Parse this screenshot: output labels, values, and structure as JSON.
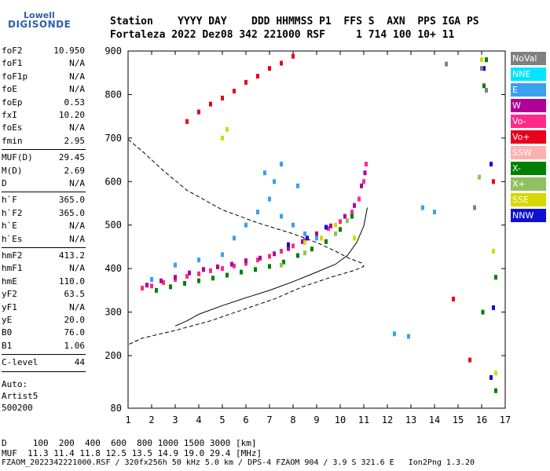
{
  "logo": {
    "top": "Lowell",
    "main": "DIGISONDE"
  },
  "header": {
    "line1": "Station    YYYY DAY    DDD HHMMSS P1  FFS S  AXN  PPS IGA PS",
    "line2": "Fortaleza 2022 Dez08 342 221000 RSF     1 714 100 10+ 11"
  },
  "params": [
    {
      "k": "foF2",
      "v": "10.950"
    },
    {
      "k": "foF1",
      "v": "N/A"
    },
    {
      "k": "foF1p",
      "v": "N/A"
    },
    {
      "k": "foE",
      "v": "N/A"
    },
    {
      "k": "foEp",
      "v": "0.53"
    },
    {
      "k": "fxI",
      "v": "10.20"
    },
    {
      "k": "foEs",
      "v": "N/A"
    },
    {
      "k": "fmin",
      "v": "2.95"
    },
    {
      "k": "MUF(D)",
      "v": "29.45"
    },
    {
      "k": "M(D)",
      "v": "2.69"
    },
    {
      "k": "D",
      "v": "N/A"
    },
    {
      "k": "h`F",
      "v": "365.0"
    },
    {
      "k": "h`F2",
      "v": "365.0"
    },
    {
      "k": "h`E",
      "v": "N/A"
    },
    {
      "k": "h`Es",
      "v": "N/A"
    },
    {
      "k": "hmF2",
      "v": "413.2"
    },
    {
      "k": "hmF1",
      "v": "N/A"
    },
    {
      "k": "hmE",
      "v": "110.0"
    },
    {
      "k": "yF2",
      "v": "63.5"
    },
    {
      "k": "yF1",
      "v": "N/A"
    },
    {
      "k": "yE",
      "v": "20.0"
    },
    {
      "k": "B0",
      "v": "76.0"
    },
    {
      "k": "B1",
      "v": "1.06"
    },
    {
      "k": "C-level",
      "v": "44"
    }
  ],
  "autoscaling": {
    "l1": "Auto:",
    "l2": "Artist5",
    "l3": "500200"
  },
  "legend": [
    {
      "label": "NoVal",
      "color": "#808080"
    },
    {
      "label": "NNE",
      "color": "#00e5ff"
    },
    {
      "label": "E",
      "color": "#3aa0f0"
    },
    {
      "label": "W",
      "color": "#b00098"
    },
    {
      "label": "Vo-",
      "color": "#ff2a8a"
    },
    {
      "label": "Vo+",
      "color": "#e8001c"
    },
    {
      "label": "SSW",
      "color": "#ffb0b0"
    },
    {
      "label": "X-",
      "color": "#008000"
    },
    {
      "label": "X+",
      "color": "#90c060"
    },
    {
      "label": "SSE",
      "color": "#d8d800"
    },
    {
      "label": "NNW",
      "color": "#1010d0"
    }
  ],
  "footer": {
    "line1": "D     100  200  400  600  800 1000 1500 3000 [km]",
    "line2": "MUF  11.3 11.4 11.8 12.5 13.5 14.9 19.0 29.4 [MHz]",
    "line3": "FZAOM_2022342221000.RSF / 320fx256h 50 kHz 5.0 km / DPS-4 FZAOM 904 / 3.9 S 321.6 E   Ion2Png 1.3.20"
  },
  "chart_data": {
    "type": "scatter",
    "title": "",
    "xlabel": "",
    "ylabel": "",
    "xlim": [
      1,
      17
    ],
    "ylim": [
      80,
      900
    ],
    "x_ticks": [
      1,
      2,
      3,
      4,
      5,
      6,
      7,
      8,
      9,
      10,
      11,
      12,
      13,
      14,
      15,
      16,
      17
    ],
    "y_ticks": [
      80,
      200,
      300,
      400,
      500,
      600,
      700,
      800,
      900
    ],
    "grid": false,
    "legend_placement": "right",
    "series": [
      {
        "name": "Vo-",
        "color": "#ff2a8a",
        "points": [
          [
            1.6,
            355
          ],
          [
            2.0,
            360
          ],
          [
            2.5,
            368
          ],
          [
            3.0,
            375
          ],
          [
            3.5,
            382
          ],
          [
            4.0,
            388
          ],
          [
            4.5,
            395
          ],
          [
            5.0,
            400
          ],
          [
            5.5,
            406
          ],
          [
            6.0,
            412
          ],
          [
            6.5,
            420
          ],
          [
            7.0,
            428
          ],
          [
            7.5,
            440
          ],
          [
            8.0,
            452
          ],
          [
            8.5,
            465
          ],
          [
            9.0,
            478
          ],
          [
            9.5,
            492
          ],
          [
            10.0,
            508
          ],
          [
            10.5,
            530
          ],
          [
            10.8,
            560
          ],
          [
            11.0,
            600
          ],
          [
            11.1,
            640
          ]
        ]
      },
      {
        "name": "W",
        "color": "#b00098",
        "points": [
          [
            1.8,
            362
          ],
          [
            2.4,
            372
          ],
          [
            3.0,
            380
          ],
          [
            3.6,
            390
          ],
          [
            4.2,
            398
          ],
          [
            4.8,
            404
          ],
          [
            5.4,
            410
          ],
          [
            6.0,
            418
          ],
          [
            6.6,
            424
          ],
          [
            7.2,
            434
          ],
          [
            7.8,
            446
          ],
          [
            8.4,
            462
          ],
          [
            9.0,
            480
          ],
          [
            9.6,
            498
          ],
          [
            10.2,
            520
          ],
          [
            10.6,
            545
          ],
          [
            10.9,
            590
          ],
          [
            11.05,
            620
          ]
        ]
      },
      {
        "name": "X-",
        "color": "#008000",
        "points": [
          [
            2.2,
            350
          ],
          [
            2.8,
            358
          ],
          [
            3.4,
            366
          ],
          [
            4.0,
            372
          ],
          [
            4.6,
            378
          ],
          [
            5.2,
            385
          ],
          [
            5.8,
            392
          ],
          [
            6.4,
            398
          ],
          [
            7.0,
            405
          ],
          [
            7.6,
            415
          ],
          [
            8.2,
            430
          ],
          [
            8.8,
            445
          ],
          [
            9.4,
            462
          ],
          [
            10.0,
            490
          ],
          [
            10.5,
            520
          ],
          [
            16.1,
            820
          ],
          [
            16.05,
            300
          ],
          [
            16.2,
            880
          ],
          [
            16.6,
            380
          ],
          [
            16.6,
            120
          ]
        ]
      },
      {
        "name": "X+",
        "color": "#90c060",
        "points": [
          [
            7.5,
            408
          ],
          [
            8.5,
            436
          ],
          [
            9.8,
            480
          ],
          [
            10.3,
            510
          ],
          [
            15.9,
            610
          ]
        ]
      },
      {
        "name": "E",
        "color": "#3aa0f0",
        "points": [
          [
            2.0,
            375
          ],
          [
            3.0,
            408
          ],
          [
            4.0,
            420
          ],
          [
            5.0,
            432
          ],
          [
            5.5,
            470
          ],
          [
            6.0,
            500
          ],
          [
            6.5,
            530
          ],
          [
            7.0,
            560
          ],
          [
            7.2,
            600
          ],
          [
            7.5,
            520
          ],
          [
            8.0,
            500
          ],
          [
            8.5,
            480
          ],
          [
            9.0,
            470
          ],
          [
            6.8,
            620
          ],
          [
            7.5,
            640
          ],
          [
            8.2,
            590
          ],
          [
            12.3,
            250
          ],
          [
            12.9,
            244
          ],
          [
            13.5,
            540
          ],
          [
            14.0,
            530
          ]
        ]
      },
      {
        "name": "SSE",
        "color": "#d8d800",
        "points": [
          [
            8.5,
            460
          ],
          [
            9.2,
            470
          ],
          [
            9.8,
            500
          ],
          [
            10.6,
            470
          ],
          [
            16.6,
            160
          ],
          [
            16.5,
            440
          ],
          [
            16.0,
            880
          ],
          [
            5.2,
            720
          ],
          [
            5.0,
            700
          ]
        ]
      },
      {
        "name": "NNW",
        "color": "#1010d0",
        "points": [
          [
            7.8,
            455
          ],
          [
            8.6,
            470
          ],
          [
            9.4,
            495
          ],
          [
            16.4,
            640
          ],
          [
            16.5,
            310
          ],
          [
            16.4,
            150
          ],
          [
            16.1,
            860
          ]
        ]
      },
      {
        "name": "Vo+",
        "color": "#e8001c",
        "points": [
          [
            3.5,
            738
          ],
          [
            4.0,
            760
          ],
          [
            4.5,
            778
          ],
          [
            5.0,
            792
          ],
          [
            5.5,
            808
          ],
          [
            6.0,
            828
          ],
          [
            6.5,
            842
          ],
          [
            7.0,
            860
          ],
          [
            7.5,
            872
          ],
          [
            8.0,
            888
          ],
          [
            14.8,
            330
          ],
          [
            15.5,
            190
          ],
          [
            16.5,
            600
          ]
        ]
      },
      {
        "name": "NoVal",
        "color": "#808080",
        "points": [
          [
            14.5,
            870
          ],
          [
            15.7,
            540
          ],
          [
            16.0,
            860
          ],
          [
            16.2,
            810
          ]
        ]
      }
    ],
    "curves": [
      {
        "name": "",
        "style": "dashed",
        "points": [
          [
            1.0,
            697
          ],
          [
            1.6,
            670
          ],
          [
            2.5,
            625
          ],
          [
            3.5,
            580
          ],
          [
            5.0,
            535
          ],
          [
            6.5,
            505
          ],
          [
            8.0,
            480
          ],
          [
            9.0,
            460
          ],
          [
            9.8,
            440
          ],
          [
            10.4,
            423
          ],
          [
            10.9,
            413
          ],
          [
            11.0,
            405
          ],
          [
            10.6,
            396
          ],
          [
            9.6,
            380
          ],
          [
            8.4,
            358
          ],
          [
            7.2,
            330
          ],
          [
            6.0,
            308
          ],
          [
            4.5,
            280
          ],
          [
            3.0,
            258
          ],
          [
            1.6,
            240
          ],
          [
            1.0,
            225
          ]
        ]
      },
      {
        "name": "",
        "style": "solid",
        "points": [
          [
            3.0,
            268
          ],
          [
            3.5,
            280
          ],
          [
            4.0,
            295
          ],
          [
            5.0,
            315
          ],
          [
            6.0,
            333
          ],
          [
            7.0,
            350
          ],
          [
            8.0,
            370
          ],
          [
            9.0,
            392
          ],
          [
            9.8,
            410
          ],
          [
            10.3,
            430
          ],
          [
            10.7,
            460
          ],
          [
            11.0,
            498
          ],
          [
            11.15,
            540
          ]
        ]
      }
    ]
  }
}
